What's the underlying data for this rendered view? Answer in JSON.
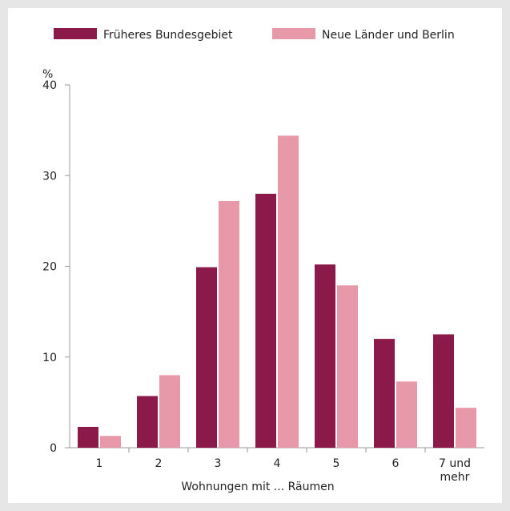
{
  "chart_data": {
    "type": "bar",
    "unit_label": "%",
    "xlabel": "Wohnungen mit ... Räumen",
    "categories": [
      "1",
      "2",
      "3",
      "4",
      "5",
      "6",
      "7 und mehr"
    ],
    "category_lines": [
      [
        "1"
      ],
      [
        "2"
      ],
      [
        "3"
      ],
      [
        "4"
      ],
      [
        "5"
      ],
      [
        "6"
      ],
      [
        "7 und",
        "mehr"
      ]
    ],
    "ylim": [
      0,
      40
    ],
    "yticks": [
      0,
      10,
      20,
      30,
      40
    ],
    "grid": false,
    "legend_position": "top",
    "series": [
      {
        "name": "Früheres Bundesgebiet",
        "color": "#8b1a4a",
        "values": [
          2.3,
          5.7,
          19.9,
          28.0,
          20.2,
          12.0,
          12.5
        ]
      },
      {
        "name": "Neue Länder und Berlin",
        "color": "#e899a9",
        "values": [
          1.3,
          8.0,
          27.2,
          34.4,
          17.9,
          7.3,
          4.4
        ]
      }
    ]
  }
}
